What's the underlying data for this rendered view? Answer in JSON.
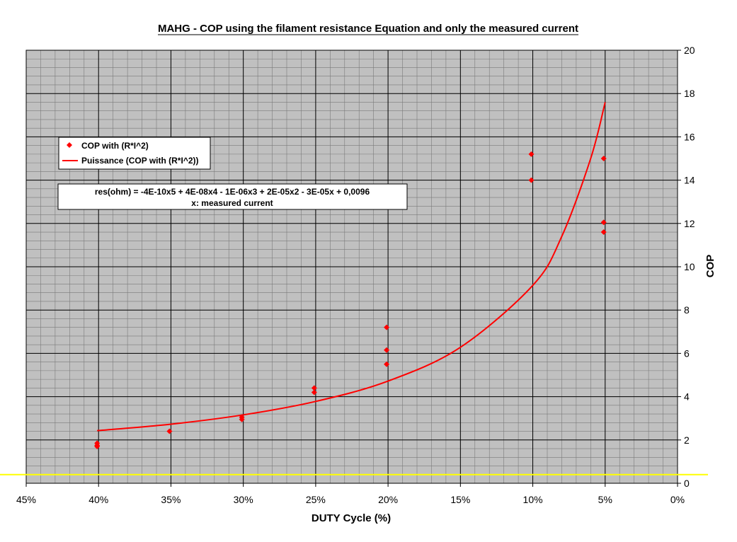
{
  "chart_data": {
    "type": "scatter",
    "title": "MAHG - COP using the filament resistance Equation and only the measured current",
    "xlabel": "DUTY Cycle (%)",
    "ylabel": "COP",
    "x_axis": {
      "min": 0,
      "max": 45,
      "step": 5,
      "reversed": true,
      "tick_suffix": "%",
      "minor_step": 1
    },
    "y_axis": {
      "min": 0,
      "max": 20,
      "step": 2,
      "position": "right",
      "minor_step": 0.4
    },
    "grid": true,
    "legend_position": "upper-left inside plot",
    "series": [
      {
        "name": "COP with (R*I^2)",
        "kind": "points",
        "marker": "diamond",
        "color": "#ff0000",
        "points": [
          [
            40.1,
            1.85
          ],
          [
            40.1,
            1.75
          ],
          [
            40.1,
            1.7
          ],
          [
            35.1,
            2.4
          ],
          [
            30.1,
            3.05
          ],
          [
            30.1,
            2.95
          ],
          [
            25.1,
            4.4
          ],
          [
            25.1,
            4.2
          ],
          [
            20.1,
            7.2
          ],
          [
            20.1,
            6.15
          ],
          [
            20.1,
            5.5
          ],
          [
            10.1,
            15.2
          ],
          [
            10.1,
            14.0
          ],
          [
            5.1,
            15.0
          ],
          [
            5.1,
            12.05
          ],
          [
            5.1,
            11.6
          ]
        ]
      },
      {
        "name": "Puissance (COP with (R*I^2))",
        "kind": "trendline",
        "fit": "power",
        "color": "#ff0000",
        "points": [
          [
            40.1,
            2.43
          ],
          [
            35,
            2.73
          ],
          [
            30,
            3.16
          ],
          [
            25,
            3.78
          ],
          [
            20,
            4.72
          ],
          [
            15,
            6.28
          ],
          [
            10,
            9.14
          ],
          [
            8,
            11.4
          ],
          [
            6,
            15.0
          ],
          [
            5,
            17.6
          ]
        ]
      }
    ],
    "reference_line": {
      "y": 0.4,
      "color": "#ffff00"
    },
    "note_lines": [
      "res(ohm) = -4E-10x5 + 4E-08x4 - 1E-06x3 + 2E-05x2 - 3E-05x + 0,0096",
      "x: measured current"
    ],
    "colors": {
      "plot_bg": "#c0c0c0",
      "grid": "#000000",
      "marker": "#ff0000",
      "trend": "#ff0000",
      "reference": "#ffff00"
    }
  }
}
